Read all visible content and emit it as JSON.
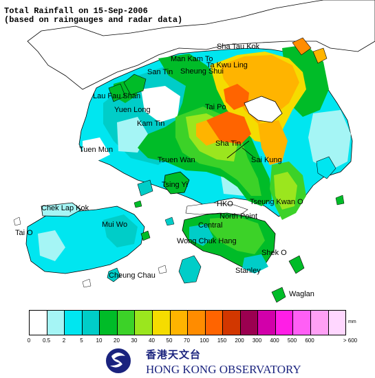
{
  "title": {
    "line1": "Total Rainfall on 15-Sep-2006",
    "line2": "(based on raingauges and radar data)"
  },
  "places": {
    "sha_tau_kok": "Sha Tau Kok",
    "man_kam_to": "Man Kam To",
    "ta_kwu_ling": "Ta Kwu Ling",
    "sheung_shui": "Sheung Shui",
    "san_tin": "San Tin",
    "lau_fau_shan": "Lau Fau Shan",
    "tai_po": "Tai Po",
    "yuen_long": "Yuen Long",
    "kam_tin": "Kam Tin",
    "sha_tin": "Sha Tin",
    "tuen_mun": "Tuen Mun",
    "tsuen_wan": "Tsuen Wan",
    "sai_kung": "Sai Kung",
    "tsing_yi": "Tsing Yi",
    "hko": "HKO",
    "tseung_kwan_o": "Tseung Kwan O",
    "chek_lap_kok": "Chek Lap Kok",
    "north_point": "North Point",
    "central": "Central",
    "mui_wo": "Mui Wo",
    "tai_o": "Tai O",
    "wong_chuk_hang": "Wong Chuk Hang",
    "shek_o": "Shek O",
    "stanley": "Stanley",
    "cheung_chau": "Cheung Chau",
    "waglan": "Waglan"
  },
  "legend": {
    "unit": "mm",
    "ticks": [
      "0",
      "0.5",
      "2",
      "5",
      "10",
      "20",
      "30",
      "40",
      "50",
      "70",
      "100",
      "150",
      "200",
      "300",
      "400",
      "500",
      "600",
      "> 600"
    ],
    "colors": [
      "#ffffff",
      "#a5f5f5",
      "#00e6f0",
      "#00cdc8",
      "#00bc28",
      "#3cd228",
      "#9be61e",
      "#f5dc00",
      "#ffb400",
      "#ff8c00",
      "#ff6400",
      "#d23700",
      "#9b0050",
      "#d200aa",
      "#ff1ee6",
      "#ff5ff5",
      "#ffa0f5",
      "#ffd7ff"
    ]
  },
  "logo": {
    "name_cn": "香港天文台",
    "name_en": "HONG KONG OBSERVATORY"
  }
}
